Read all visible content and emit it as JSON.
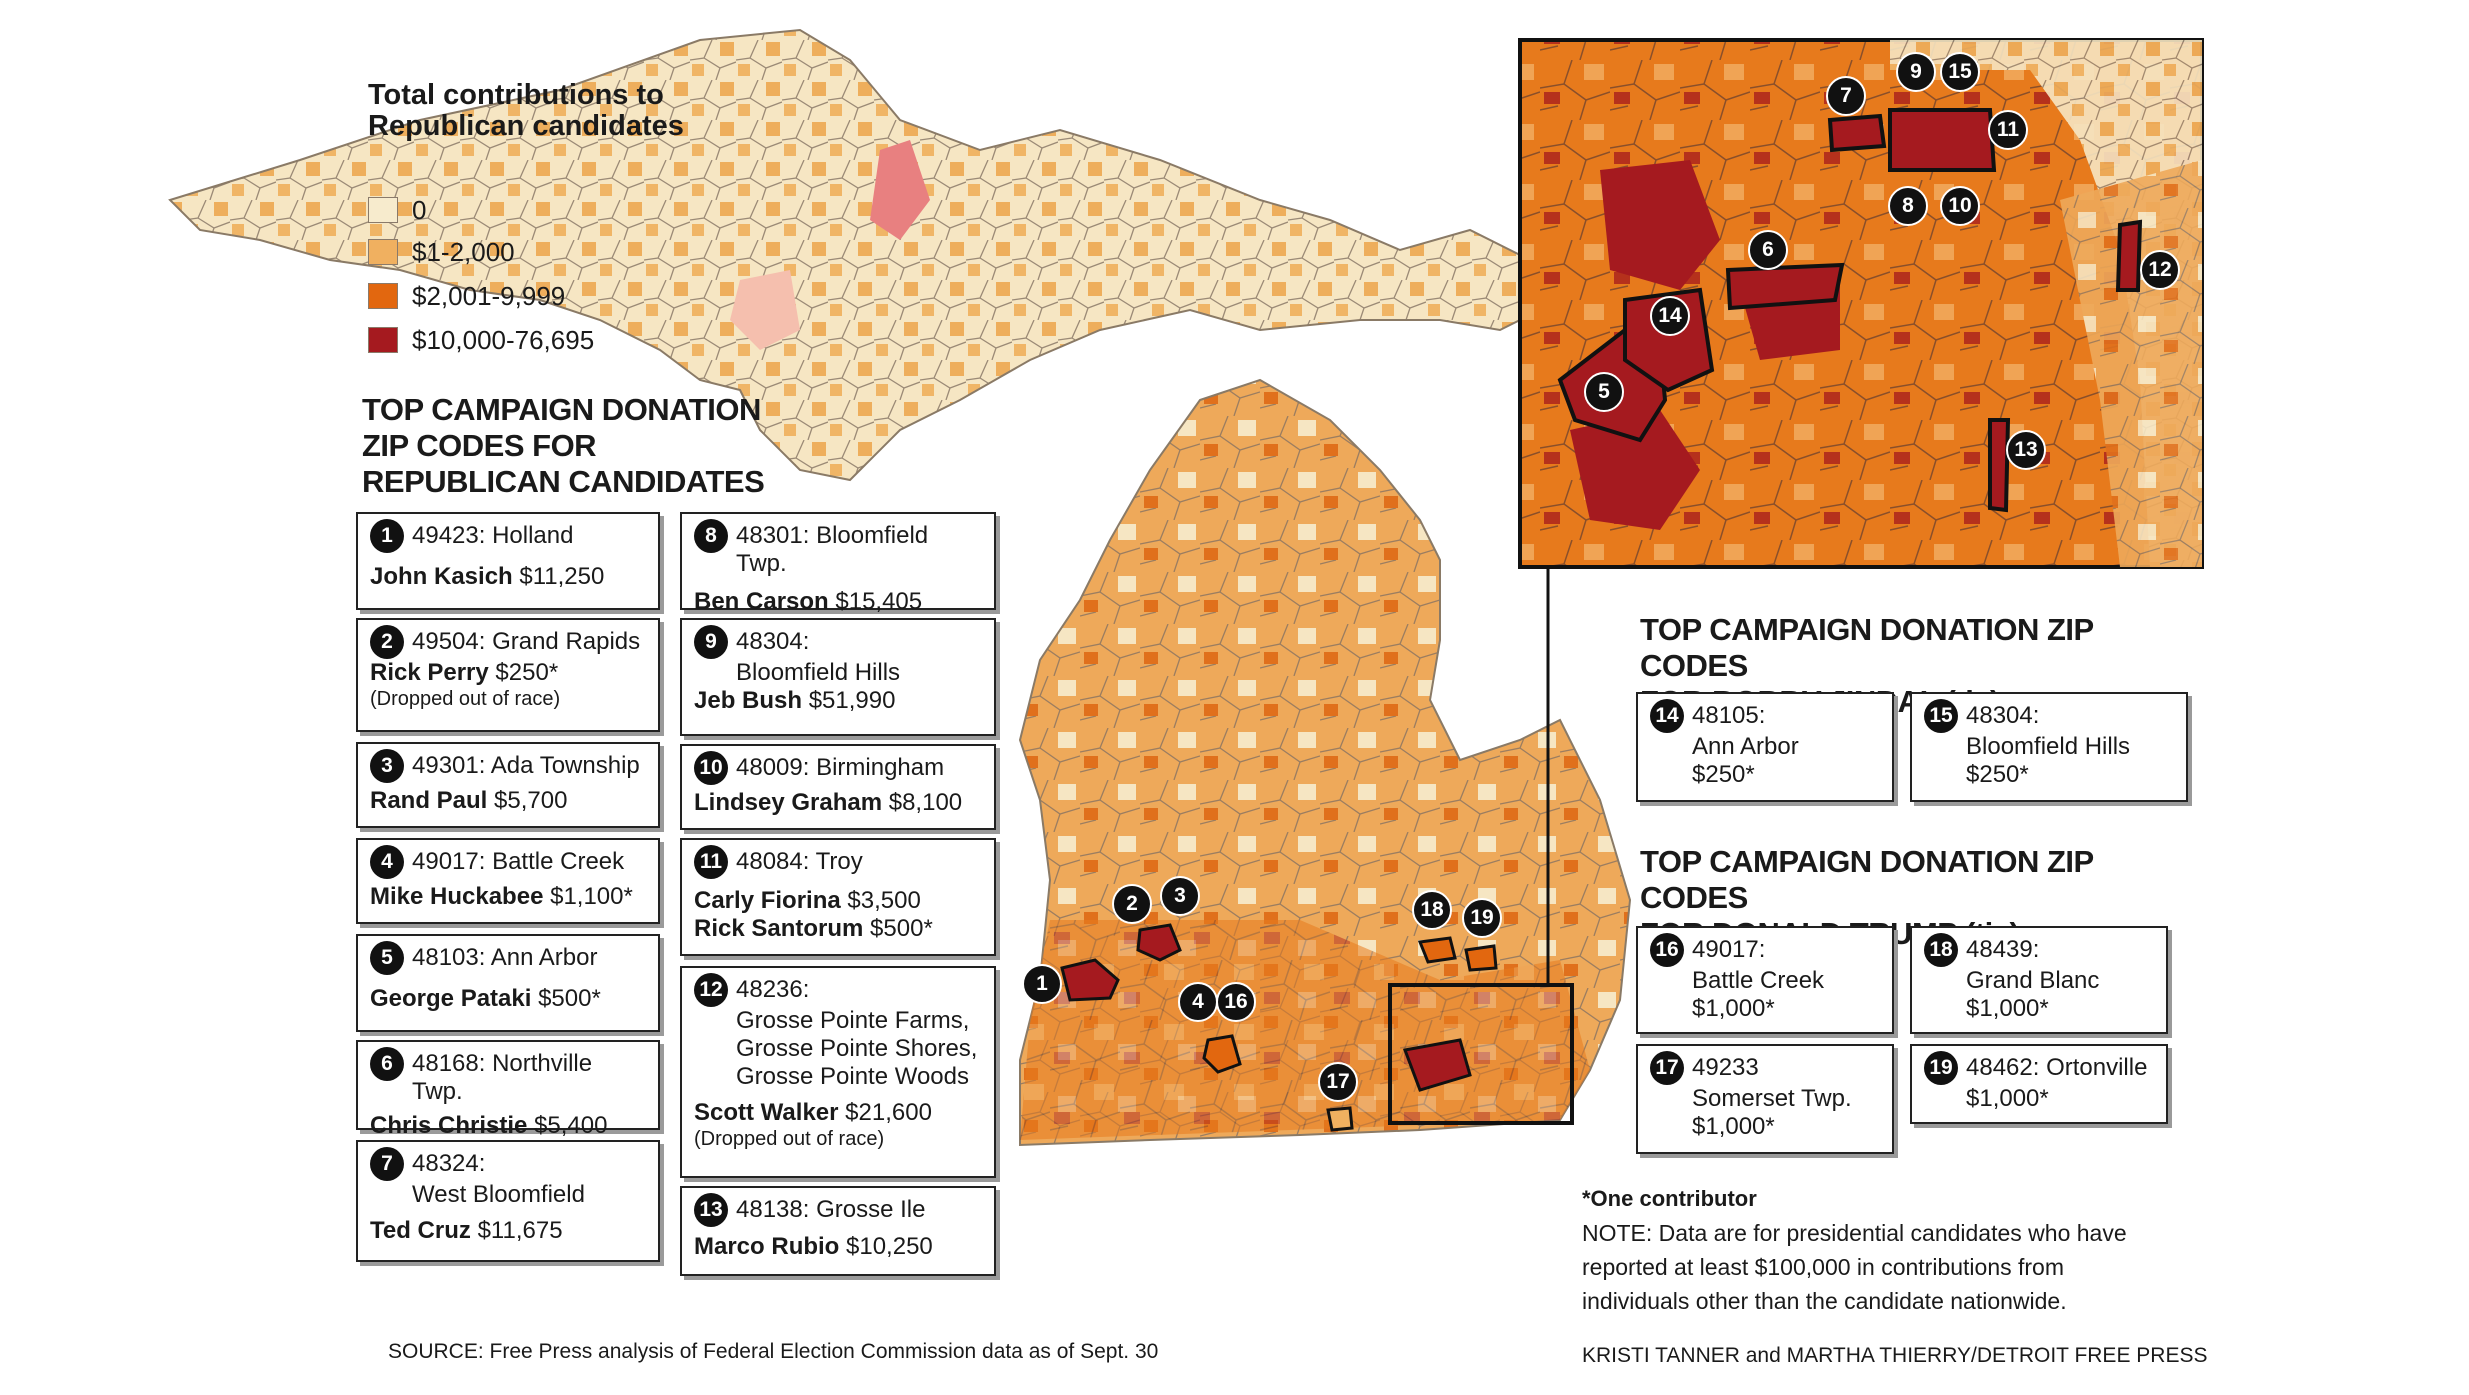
{
  "legend": {
    "title": "Total contributions to Republican candidates",
    "items": [
      {
        "label": "0",
        "color": "#f7ebcd"
      },
      {
        "label": "$1-2,000",
        "color": "#f0b060"
      },
      {
        "label": "$2,001-9,999",
        "color": "#e2670f"
      },
      {
        "label": "$10,000-76,695",
        "color": "#a51a1f"
      }
    ]
  },
  "headings": {
    "rep": "TOP CAMPAIGN DONATION ZIP CODES FOR REPUBLICAN CANDIDATES",
    "rep_lines": [
      "TOP CAMPAIGN DONATION",
      "ZIP CODES FOR",
      "REPUBLICAN CANDIDATES"
    ],
    "jindal_lines": [
      "TOP CAMPAIGN DONATION ZIP CODES",
      "FOR BOBBY JINDAL (tie)"
    ],
    "trump_lines": [
      "TOP CAMPAIGN DONATION ZIP CODES",
      "FOR DONALD TRUMP (tie)"
    ]
  },
  "rep_entries": [
    {
      "num": "1",
      "zip": "49423: Holland",
      "candidate": "John Kasich",
      "amount": "$11,250",
      "note": ""
    },
    {
      "num": "2",
      "zip": "49504: Grand Rapids",
      "candidate": "Rick Perry",
      "amount": "$250*",
      "note": "(Dropped out of race)"
    },
    {
      "num": "3",
      "zip": "49301: Ada Township",
      "candidate": "Rand Paul",
      "amount": "$5,700",
      "note": ""
    },
    {
      "num": "4",
      "zip": "49017: Battle Creek",
      "candidate": "Mike Huckabee",
      "amount": "$1,100*",
      "note": ""
    },
    {
      "num": "5",
      "zip": "48103: Ann Arbor",
      "candidate": "George Pataki",
      "amount": "$500*",
      "note": ""
    },
    {
      "num": "6",
      "zip": "48168: Northville Twp.",
      "candidate": "Chris Christie",
      "amount": "$5,400",
      "note": ""
    },
    {
      "num": "7",
      "zip": "48324:",
      "zip2": "West Bloomfield",
      "candidate": "Ted Cruz",
      "amount": "$11,675",
      "note": ""
    },
    {
      "num": "8",
      "zip": "48301: Bloomfield Twp.",
      "candidate": "Ben Carson",
      "amount": "$15,405",
      "note": ""
    },
    {
      "num": "9",
      "zip": "48304:",
      "zip2": "Bloomfield Hills",
      "candidate": "Jeb Bush",
      "amount": "$51,990",
      "note": ""
    },
    {
      "num": "10",
      "zip": "48009: Birmingham",
      "candidate": "Lindsey Graham",
      "amount": "$8,100",
      "note": ""
    },
    {
      "num": "11",
      "zip": "48084: Troy",
      "candidate": "Carly Fiorina",
      "amount": "$3,500",
      "candidate2": "Rick Santorum",
      "amount2": "$500*",
      "note": ""
    },
    {
      "num": "12",
      "zip": "48236:",
      "zip2": "Grosse Pointe Farms,",
      "zip3": "Grosse Pointe Shores,",
      "zip4": "Grosse Pointe Woods",
      "candidate": "Scott Walker",
      "amount": "$21,600",
      "note": "(Dropped out of race)"
    },
    {
      "num": "13",
      "zip": "48138: Grosse Ile",
      "candidate": "Marco Rubio",
      "amount": "$10,250",
      "note": ""
    }
  ],
  "jindal_entries": [
    {
      "num": "14",
      "zip": "48105:",
      "place": "Ann Arbor",
      "amount": "$250*"
    },
    {
      "num": "15",
      "zip": "48304:",
      "place": "Bloomfield Hills",
      "amount": "$250*"
    }
  ],
  "trump_entries": [
    {
      "num": "16",
      "zip": "49017:",
      "place": "Battle Creek",
      "amount": "$1,000*"
    },
    {
      "num": "18",
      "zip": "48439:",
      "place": "Grand Blanc",
      "amount": "$1,000*"
    },
    {
      "num": "17",
      "zip": "49233",
      "place": "Somerset Twp.",
      "amount": "$1,000*"
    },
    {
      "num": "19",
      "zip": "48462: Ortonville",
      "place": "",
      "amount": "$1,000*"
    }
  ],
  "footnotes": {
    "one_contributor": "*One contributor",
    "note_lines": [
      "NOTE: Data are for presidential candidates who have",
      "reported at least $100,000 in contributions from",
      "individuals other than the candidate nationwide."
    ],
    "source": "SOURCE: Free Press analysis of Federal Election Commission data as of Sept. 30",
    "credit": "KRISTI TANNER and MARTHA THIERRY/DETROIT FREE PRESS"
  },
  "map_markers": [
    "1",
    "2",
    "3",
    "4",
    "16",
    "17",
    "18",
    "19"
  ],
  "inset_markers": [
    "5",
    "6",
    "7",
    "8",
    "9",
    "10",
    "11",
    "12",
    "13",
    "14",
    "15"
  ]
}
